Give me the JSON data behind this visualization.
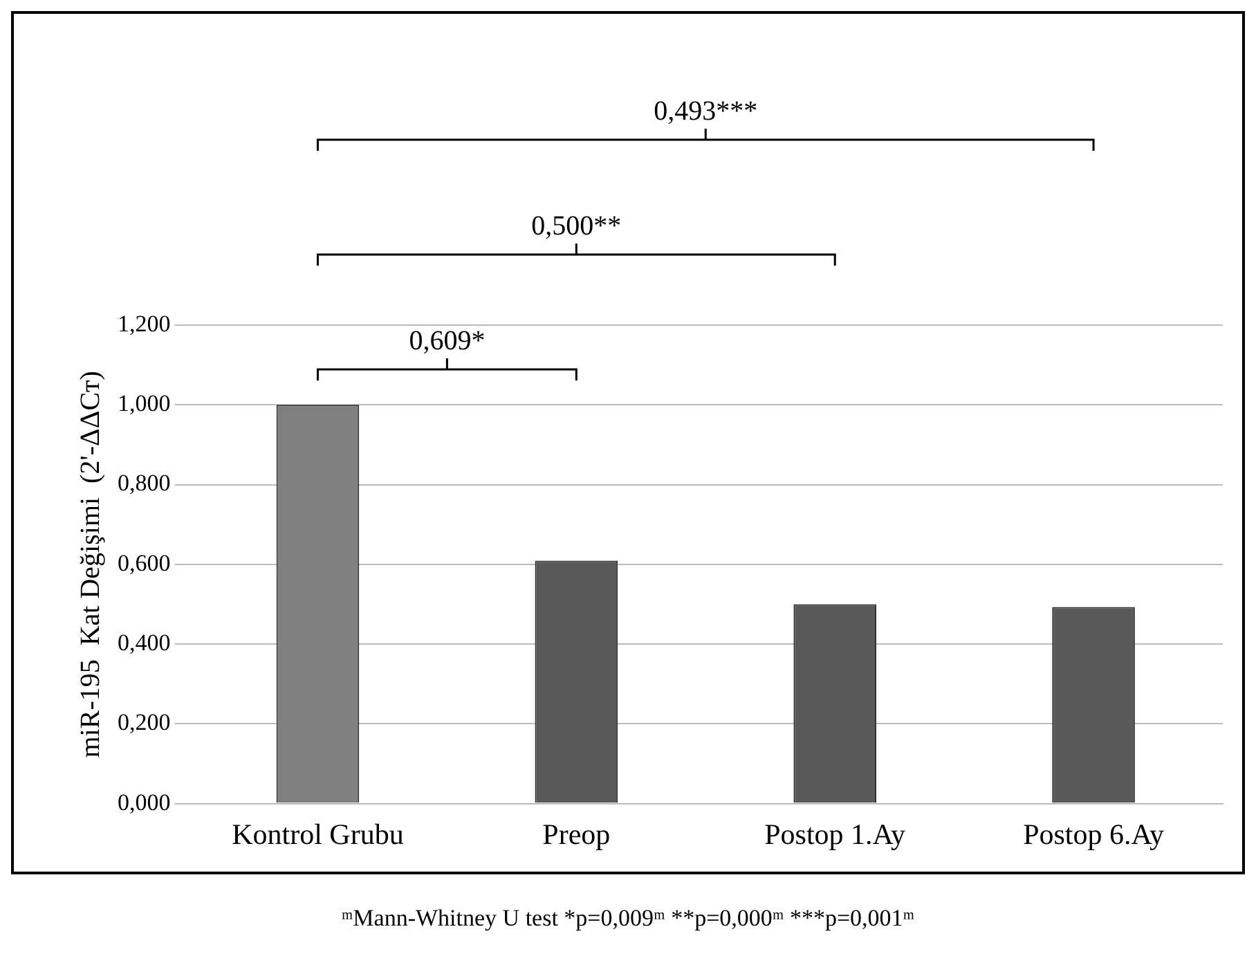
{
  "chart_data": {
    "type": "bar",
    "ylabel": "miR-195  Kat Değişimi  (2'-ΔΔCт)",
    "categories": [
      "Kontrol Grubu",
      "Preop",
      "Postop 1.Ay",
      "Postop 6.Ay"
    ],
    "values": [
      1.0,
      0.609,
      0.5,
      0.493
    ],
    "colors": [
      "#808080",
      "#595959",
      "#595959",
      "#595959"
    ],
    "ylim": [
      0,
      1.2
    ],
    "yticks": [
      {
        "value": 0,
        "label": "0,000"
      },
      {
        "value": 0.2,
        "label": "0,200"
      },
      {
        "value": 0.4,
        "label": "0,400"
      },
      {
        "value": 0.6,
        "label": "0,600"
      },
      {
        "value": 0.8,
        "label": "0,800"
      },
      {
        "value": 1.0,
        "label": "1,000"
      },
      {
        "value": 1.2,
        "label": "1,200"
      }
    ],
    "grid": "y",
    "annotations": [
      "0,609*",
      "0,500**",
      "0,493***",
      "ᵐMann-Whitney U test  *p=0,009ᵐ  **p=0,000ᵐ  ***p=0,001ᵐ"
    ]
  }
}
